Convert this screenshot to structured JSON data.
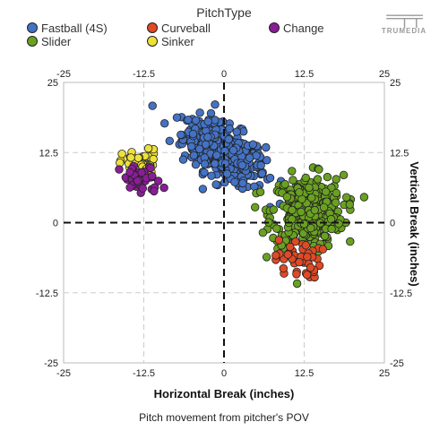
{
  "legend": {
    "title": "PitchType",
    "items": [
      {
        "label": "Fastball (4S)",
        "color": "#4472c4"
      },
      {
        "label": "Curveball",
        "color": "#e04a26"
      },
      {
        "label": "Change",
        "color": "#8a1e96"
      },
      {
        "label": "Slider",
        "color": "#6aa121"
      },
      {
        "label": "Sinker",
        "color": "#ede13a"
      }
    ]
  },
  "logo": {
    "mark": "═╤╤",
    "text": "TRUMEDIA"
  },
  "chart_data": {
    "type": "scatter",
    "title": "",
    "xlabel": "Horizontal Break (inches)",
    "ylabel": "Vertical Break (inches)",
    "caption": "Pitch movement from pitcher's POV",
    "xlim": [
      -25,
      25
    ],
    "ylim": [
      -25,
      25
    ],
    "xticks": [
      "-25",
      "-12.5",
      "0",
      "12.5",
      "25"
    ],
    "yticks": [
      "25",
      "12.5",
      "0",
      "-12.5",
      "-25"
    ],
    "grid": true,
    "zero_lines": "dashed",
    "legend_position": "top",
    "series": [
      {
        "name": "Fastball (4S)",
        "color": "#4472c4",
        "cluster": {
          "center": [
            0,
            12.5
          ],
          "spread": [
            4,
            3
          ],
          "tilt": -0.5,
          "count": 420
        }
      },
      {
        "name": "Slider",
        "color": "#6aa121",
        "cluster": {
          "center": [
            13,
            2
          ],
          "spread": [
            3.5,
            4
          ],
          "tilt": 0,
          "count": 360
        }
      },
      {
        "name": "Curveball",
        "color": "#e04a26",
        "cluster": {
          "center": [
            11.5,
            -6.5
          ],
          "spread": [
            2.2,
            2.2
          ],
          "tilt": 0,
          "count": 45
        }
      },
      {
        "name": "Sinker",
        "color": "#ede13a",
        "cluster": {
          "center": [
            -13,
            10.5
          ],
          "spread": [
            1.8,
            1.6
          ],
          "tilt": 0,
          "count": 45
        }
      },
      {
        "name": "Change",
        "color": "#8a1e96",
        "cluster": {
          "center": [
            -13,
            7.5
          ],
          "spread": [
            2,
            1.7
          ],
          "tilt": 0,
          "count": 45
        }
      }
    ]
  }
}
